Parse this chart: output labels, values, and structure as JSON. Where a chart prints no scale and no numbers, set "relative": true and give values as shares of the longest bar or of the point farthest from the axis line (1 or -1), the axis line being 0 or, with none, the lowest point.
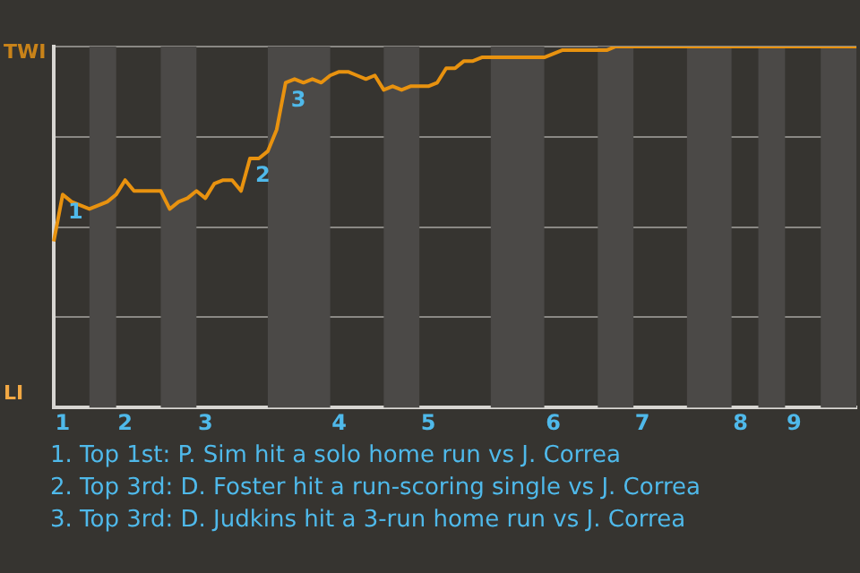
{
  "chart_data": {
    "type": "line",
    "relative": true,
    "annotations": [
      "TWI",
      "LI",
      {
        "text": "1",
        "y": 0.59
      },
      {
        "text": "2",
        "y": 0.69
      },
      {
        "text": "3",
        "y": 0.9
      },
      "1. Top 1st: P. Sim hit a solo home run vs J. Correa",
      "2. Top 3rd: D. Foster hit a run-scoring single vs J. Correa",
      "3. Top 3rd: D. Judkins hit a 3-run home run vs J. Correa"
    ],
    "categories": [
      null,
      "1",
      null,
      null,
      null,
      null,
      null,
      null,
      "2",
      null,
      null,
      null,
      null,
      null,
      null,
      null,
      null,
      "3",
      null,
      null,
      null,
      null,
      null,
      null,
      null,
      null,
      null,
      null,
      null,
      null,
      null,
      null,
      "4",
      null,
      null,
      null,
      null,
      null,
      null,
      null,
      null,
      null,
      "5",
      null,
      null,
      null,
      null,
      null,
      null,
      null,
      null,
      null,
      null,
      null,
      null,
      null,
      "6",
      null,
      null,
      null,
      null,
      null,
      null,
      null,
      null,
      null,
      "7",
      null,
      null,
      null,
      null,
      null,
      null,
      null,
      null,
      null,
      null,
      "8",
      null,
      null,
      null,
      null,
      null,
      "9",
      null,
      null,
      null,
      null,
      null,
      null,
      null
    ],
    "series": [
      {
        "color": "#e8920f",
        "values": [
          0.46,
          0.59,
          0.57,
          0.56,
          0.55,
          0.56,
          0.57,
          0.59,
          0.63,
          0.6,
          0.6,
          0.6,
          0.6,
          0.55,
          0.57,
          0.58,
          0.6,
          0.58,
          0.62,
          0.63,
          0.63,
          0.6,
          0.69,
          0.69,
          0.71,
          0.77,
          0.9,
          0.91,
          0.9,
          0.91,
          0.9,
          0.92,
          0.93,
          0.93,
          0.92,
          0.91,
          0.92,
          0.88,
          0.89,
          0.88,
          0.89,
          0.89,
          0.89,
          0.9,
          0.94,
          0.94,
          0.96,
          0.96,
          0.97,
          0.97,
          0.97,
          0.97,
          0.97,
          0.97,
          0.97,
          0.97,
          0.98,
          0.99,
          0.99,
          0.99,
          0.99,
          0.99,
          0.99,
          1,
          1,
          1,
          1,
          1,
          1,
          1,
          1,
          1,
          1,
          1,
          1,
          1,
          1,
          1,
          1,
          1,
          1,
          1,
          1,
          1,
          1,
          1,
          1,
          1,
          1,
          1,
          1
        ]
      }
    ],
    "grid": "y",
    "legend": false,
    "marker": "none",
    "line_style": "solid"
  }
}
